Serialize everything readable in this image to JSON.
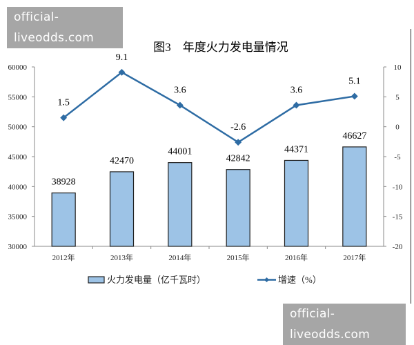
{
  "watermark": {
    "top": "official-liveodds.com",
    "bottom": "official-liveodds.com"
  },
  "chart_data": {
    "type": "bar+line",
    "title": "图3　年度火力发电量情况",
    "categories": [
      "2012年",
      "2013年",
      "2014年",
      "2015年",
      "2016年",
      "2017年"
    ],
    "series": [
      {
        "name": "火力发电量（亿千瓦时）",
        "type": "bar",
        "axis": "left",
        "values": [
          38928,
          42470,
          44001,
          42842,
          44371,
          46627
        ],
        "color": "#9dc3e6"
      },
      {
        "name": "增速（%）",
        "type": "line",
        "axis": "right",
        "values": [
          1.5,
          9.1,
          3.6,
          -2.6,
          3.6,
          5.1
        ],
        "color": "#2e6ca4"
      }
    ],
    "y_left": {
      "range": [
        30000,
        60000
      ],
      "ticks": [
        30000,
        35000,
        40000,
        45000,
        50000,
        55000,
        60000
      ]
    },
    "y_right": {
      "range": [
        -20,
        10
      ],
      "ticks": [
        -20,
        -15,
        -10,
        -5,
        0,
        5,
        10
      ]
    },
    "grid": false,
    "legend": "bottom"
  }
}
